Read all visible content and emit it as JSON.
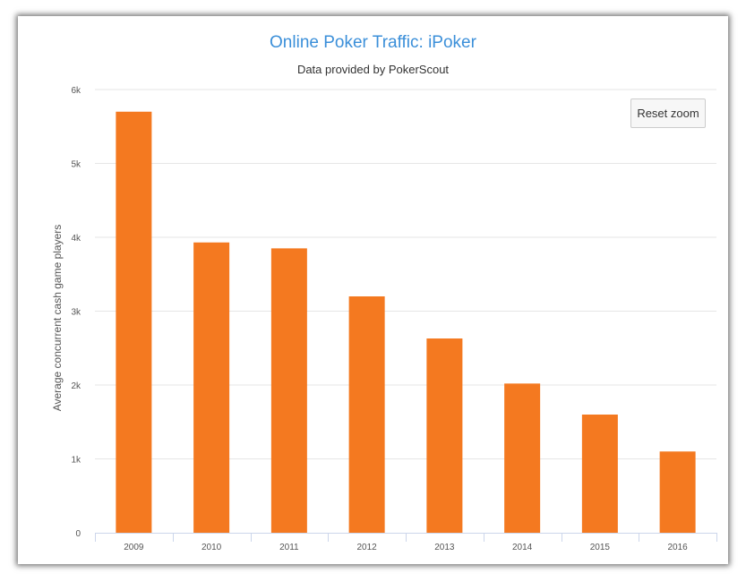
{
  "chart_data": {
    "type": "bar",
    "title": "Online Poker Traffic: iPoker",
    "subtitle": "Data provided by PokerScout",
    "xlabel": "",
    "ylabel": "Average concurrent cash game players",
    "categories": [
      "2009",
      "2010",
      "2011",
      "2012",
      "2013",
      "2014",
      "2015",
      "2016"
    ],
    "values": [
      5700,
      3930,
      3850,
      3200,
      2630,
      2020,
      1600,
      1100
    ],
    "ylim": [
      0,
      6000
    ],
    "yticks": [
      0,
      1000,
      2000,
      3000,
      4000,
      5000,
      6000
    ],
    "ytick_labels": [
      "0",
      "1k",
      "2k",
      "3k",
      "4k",
      "5k",
      "6k"
    ],
    "grid": true,
    "legend": "none",
    "bar_color": "#f47920"
  },
  "controls": {
    "reset_zoom_label": "Reset zoom"
  },
  "colors": {
    "title": "#3b8fd9",
    "gridline": "#e6e6e6"
  }
}
